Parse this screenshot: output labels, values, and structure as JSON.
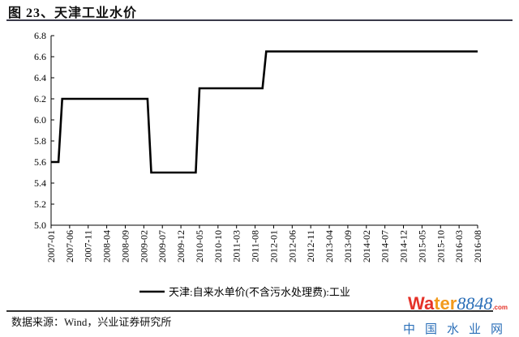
{
  "title": "图 23、天津工业水价",
  "source": "数据来源：Wind，兴业证券研究所",
  "watermark": {
    "brand": "Water8848",
    "domain": ".com",
    "cn": "中国水业网"
  },
  "chart_data": {
    "type": "line",
    "title": "图 23、天津工业水价",
    "xlabel": "",
    "ylabel": "",
    "ylim": [
      5.0,
      6.8
    ],
    "yticks": [
      "5.0",
      "5.2",
      "5.4",
      "5.6",
      "5.8",
      "6.0",
      "6.2",
      "6.4",
      "6.6",
      "6.8"
    ],
    "xrange": [
      "2007-01",
      "2016-08"
    ],
    "xticks": [
      "2007-01",
      "2007-06",
      "2007-11",
      "2008-04",
      "2008-09",
      "2009-02",
      "2009-07",
      "2009-12",
      "2010-05",
      "2010-10",
      "2011-03",
      "2011-08",
      "2012-01",
      "2012-06",
      "2012-11",
      "2013-04",
      "2013-09",
      "2014-02",
      "2014-07",
      "2014-12",
      "2015-05",
      "2015-10",
      "2016-03",
      "2016-08"
    ],
    "grid": false,
    "legend_position": "bottom",
    "series": [
      {
        "name": "天津:自来水单价(不含污水处理费):工业",
        "color": "#000000",
        "points": [
          {
            "x": "2007-01",
            "y": 5.6
          },
          {
            "x": "2007-03",
            "y": 5.6
          },
          {
            "x": "2007-04",
            "y": 6.2
          },
          {
            "x": "2009-03",
            "y": 6.2
          },
          {
            "x": "2009-04",
            "y": 5.5
          },
          {
            "x": "2010-04",
            "y": 5.5
          },
          {
            "x": "2010-05",
            "y": 6.3
          },
          {
            "x": "2011-10",
            "y": 6.3
          },
          {
            "x": "2011-11",
            "y": 6.65
          },
          {
            "x": "2016-08",
            "y": 6.65
          }
        ]
      }
    ]
  }
}
